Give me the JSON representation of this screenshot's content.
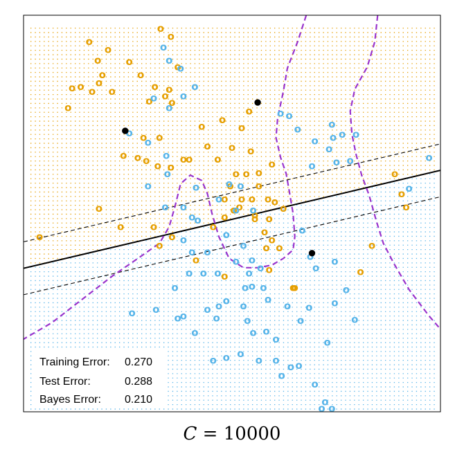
{
  "chart_data": {
    "type": "scatter",
    "title": "",
    "xlim": [
      -3,
      4.3
    ],
    "ylim": [
      -2.6,
      3.4
    ],
    "grid": false,
    "legend": "none",
    "colors": {
      "orange": "#e69f00",
      "blue": "#56b4e9",
      "boundary": "#9933cc",
      "margin": "#000000",
      "support": "#000000"
    },
    "series": [
      {
        "name": "",
        "symbol": "o",
        "color": "#e69f00",
        "x": [
          -0.6,
          -0.42,
          -1.85,
          -1.52,
          -1.7,
          -1.15,
          -0.3,
          -0.95,
          -1.62,
          -2.15,
          -2.0,
          -1.8,
          -2.22,
          -1.45,
          -1.68,
          -0.7,
          -0.45,
          -0.52,
          -0.8,
          -0.4,
          0.12,
          0.48,
          0.95,
          0.82,
          -0.1,
          -0.62,
          -0.9,
          -1.25,
          -1.0,
          -0.85,
          -0.65,
          -0.42,
          -0.2,
          0.22,
          0.4,
          0.65,
          0.98,
          0.72,
          1.12,
          1.35,
          0.9,
          0.62,
          0.52,
          0.82,
          1.0,
          0.78,
          1.05,
          0.68,
          0.52,
          0.32,
          -0.62,
          -0.4,
          -1.3,
          -1.68,
          -2.72,
          1.12,
          1.28,
          1.4,
          1.55,
          1.3,
          1.05,
          1.22,
          1.35,
          1.48,
          1.25,
          1.3,
          0.52,
          1.75,
          1.72,
          3.5,
          3.62,
          3.7,
          3.1,
          2.9,
          -0.72,
          0.02
        ],
        "y": [
          3.2,
          3.08,
          3.0,
          2.88,
          2.72,
          2.7,
          2.62,
          2.5,
          2.5,
          2.3,
          2.32,
          2.25,
          2.0,
          2.25,
          2.38,
          2.32,
          2.28,
          2.18,
          2.1,
          2.08,
          1.72,
          1.82,
          1.95,
          1.7,
          1.22,
          1.55,
          1.55,
          1.28,
          1.25,
          1.2,
          1.12,
          1.1,
          1.22,
          1.42,
          1.22,
          1.4,
          1.35,
          1.0,
          1.02,
          1.15,
          1.0,
          0.82,
          0.62,
          0.62,
          0.62,
          0.5,
          0.38,
          0.45,
          0.35,
          0.2,
          -0.08,
          0.05,
          0.2,
          0.48,
          0.05,
          0.82,
          0.62,
          0.58,
          0.48,
          0.32,
          0.32,
          0.12,
          0.0,
          -0.12,
          -0.12,
          -0.45,
          -0.55,
          -0.72,
          -0.72,
          1.0,
          0.7,
          0.5,
          -0.08,
          -0.48,
          0.2,
          -0.3
        ]
      },
      {
        "name": "",
        "symbol": "o",
        "color": "#56b4e9",
        "x": [
          -0.55,
          -0.45,
          -0.25,
          0.0,
          -0.72,
          -0.45,
          -0.2,
          1.5,
          1.8,
          1.65,
          2.58,
          2.4,
          2.42,
          2.82,
          2.1,
          2.35,
          2.05,
          2.48,
          2.72,
          4.1,
          3.75,
          -1.15,
          -0.82,
          -0.5,
          -0.48,
          -0.82,
          -0.52,
          -0.2,
          0.02,
          0.42,
          0.6,
          0.8,
          1.02,
          0.72,
          -0.05,
          0.05,
          -0.2,
          -0.05,
          0.22,
          0.55,
          0.85,
          1.0,
          -0.1,
          0.15,
          0.4,
          0.72,
          0.95,
          1.15,
          1.0,
          1.2,
          0.88,
          0.55,
          0.42,
          0.22,
          0.85,
          -0.2,
          0.38,
          0.92,
          1.02,
          1.25,
          1.42,
          -0.35,
          1.88,
          2.02,
          2.12,
          2.45,
          1.28,
          1.62,
          1.85,
          2.0,
          2.32,
          2.65,
          2.45,
          2.8,
          -0.68,
          -0.3,
          0.0,
          0.32,
          0.55,
          0.8,
          1.12,
          1.42,
          1.52,
          -1.1,
          1.68,
          1.82,
          2.1,
          2.22,
          2.28,
          2.4,
          0.15,
          0.55
        ],
        "y": [
          2.92,
          2.72,
          2.6,
          2.32,
          2.15,
          2.0,
          2.18,
          1.92,
          1.68,
          1.88,
          1.6,
          1.75,
          1.55,
          1.6,
          1.5,
          1.38,
          1.12,
          1.18,
          1.2,
          1.25,
          0.78,
          1.62,
          1.48,
          1.28,
          1.0,
          0.82,
          0.5,
          0.5,
          0.8,
          0.62,
          0.85,
          0.82,
          0.45,
          0.45,
          0.35,
          0.3,
          0.0,
          -0.18,
          -0.18,
          0.08,
          -0.08,
          -0.3,
          -0.5,
          -0.5,
          -0.5,
          -0.32,
          -0.5,
          -0.42,
          -0.7,
          -0.72,
          -0.72,
          -0.92,
          -1.0,
          -1.05,
          -1.0,
          -1.15,
          -1.18,
          -1.22,
          -1.4,
          -1.38,
          -1.5,
          -0.72,
          0.15,
          -0.25,
          -0.42,
          -0.32,
          -0.9,
          -1.0,
          -1.22,
          -1.02,
          -1.55,
          -0.75,
          -0.95,
          -1.2,
          -1.05,
          -1.18,
          -1.4,
          -1.82,
          -1.78,
          -1.72,
          -1.82,
          -1.82,
          -2.05,
          -1.1,
          -1.92,
          -1.9,
          -2.18,
          -2.55,
          -2.45,
          -2.55,
          -2.7,
          -2.82
        ]
      },
      {
        "name": "",
        "symbol": "●",
        "color": "#000000",
        "x": [
          -1.22,
          1.1,
          2.05
        ],
        "y": [
          1.65,
          2.08,
          -0.2
        ]
      }
    ],
    "annotations": [
      {
        "label": "Training Error:",
        "value": "0.270"
      },
      {
        "label": "Test Error:",
        "value": "0.288"
      },
      {
        "label": "Bayes Error:",
        "value": "0.210"
      }
    ]
  },
  "caption": {
    "var": "C",
    "op": " = ",
    "value": "10000"
  }
}
